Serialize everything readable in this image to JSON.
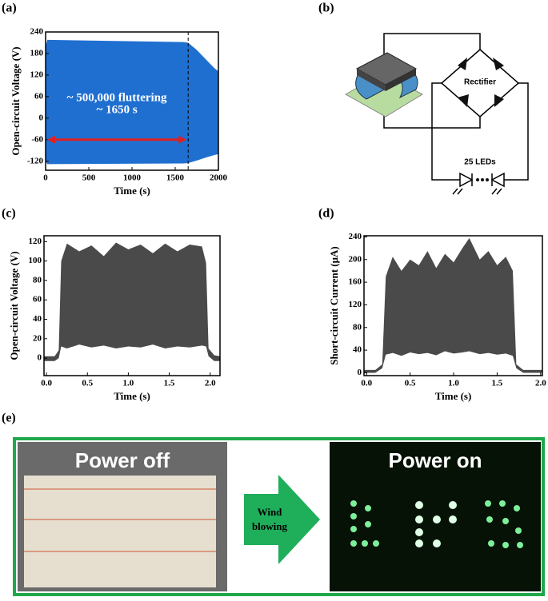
{
  "figure": {
    "a": {
      "label": "(a)",
      "type": "band",
      "color": "#1f6fd0",
      "xlabel": "Time (s)",
      "ylabel": "Open-circuit Voltage (V)",
      "xlim": [
        0,
        2000
      ],
      "ylim": [
        -145,
        240
      ],
      "xticks": [
        0,
        500,
        1000,
        1500,
        2000
      ],
      "yticks": [
        -120,
        -60,
        0,
        60,
        120,
        180,
        240
      ],
      "x": [
        0,
        20,
        1600,
        1650,
        1750,
        1850,
        1950,
        2000
      ],
      "upper": [
        200,
        218,
        212,
        210,
        190,
        165,
        140,
        130
      ],
      "lower": [
        -120,
        -128,
        -126,
        -125,
        -118,
        -110,
        -103,
        -100
      ],
      "marker_x": 1650,
      "arrow_y": -60,
      "annotations": [
        "~ 500,000 fluttering",
        "~ 1650 s"
      ]
    },
    "b": {
      "label": "(b)",
      "rectifier": "Rectifier",
      "leds": "25 LEDs"
    },
    "c": {
      "label": "(c)",
      "type": "band",
      "color": "#4a4a4a",
      "xlabel": "Time (s)",
      "ylabel": "Open-circuit Voltage (V)",
      "xlim": [
        -0.03,
        2.12
      ],
      "ylim": [
        -18,
        126
      ],
      "xticks": [
        {
          "value": 0,
          "label": "0.0"
        },
        0.5,
        {
          "value": 1,
          "label": "1.0"
        },
        1.5,
        {
          "value": 2,
          "label": "2.0"
        }
      ],
      "yticks": [
        0,
        20,
        40,
        60,
        80,
        100,
        120
      ],
      "x": [
        -0.03,
        0.1,
        0.15,
        0.18,
        0.25,
        0.4,
        0.55,
        0.7,
        0.85,
        1.0,
        1.15,
        1.3,
        1.45,
        1.6,
        1.75,
        1.9,
        1.95,
        1.98,
        2.05,
        2.12
      ],
      "upper": [
        2,
        2,
        8,
        100,
        118,
        110,
        116,
        105,
        119,
        112,
        117,
        108,
        118,
        110,
        117,
        115,
        98,
        10,
        3,
        2
      ],
      "lower": [
        -3,
        -3,
        0,
        12,
        10,
        14,
        11,
        13,
        10,
        12,
        11,
        14,
        10,
        12,
        11,
        13,
        12,
        2,
        -3,
        -3
      ]
    },
    "d": {
      "label": "(d)",
      "type": "band",
      "color": "#4a4a4a",
      "xlabel": "Time (s)",
      "ylabel": "Short-circuit Current (μA)",
      "xlim": [
        -0.03,
        2.02
      ],
      "ylim": [
        -5,
        242
      ],
      "xticks": [
        {
          "value": 0,
          "label": "0.0"
        },
        0.5,
        {
          "value": 1,
          "label": "1.0"
        },
        1.5,
        {
          "value": 2,
          "label": "2.0"
        }
      ],
      "yticks": [
        0,
        40,
        80,
        120,
        160,
        200,
        240
      ],
      "x": [
        -0.03,
        0.1,
        0.18,
        0.22,
        0.3,
        0.4,
        0.5,
        0.6,
        0.7,
        0.8,
        0.9,
        1.0,
        1.1,
        1.18,
        1.3,
        1.4,
        1.5,
        1.6,
        1.68,
        1.72,
        1.8,
        2.02
      ],
      "upper": [
        5,
        5,
        15,
        170,
        205,
        180,
        200,
        190,
        215,
        185,
        210,
        195,
        220,
        238,
        200,
        215,
        190,
        205,
        180,
        15,
        5,
        5
      ],
      "lower": [
        0,
        0,
        8,
        32,
        35,
        30,
        36,
        33,
        35,
        31,
        38,
        34,
        36,
        38,
        33,
        35,
        32,
        34,
        30,
        8,
        0,
        0
      ]
    },
    "e": {
      "label": "(e)",
      "left": "Power off",
      "right": "Power on",
      "arrow": [
        "Wind",
        "blowing"
      ]
    }
  }
}
